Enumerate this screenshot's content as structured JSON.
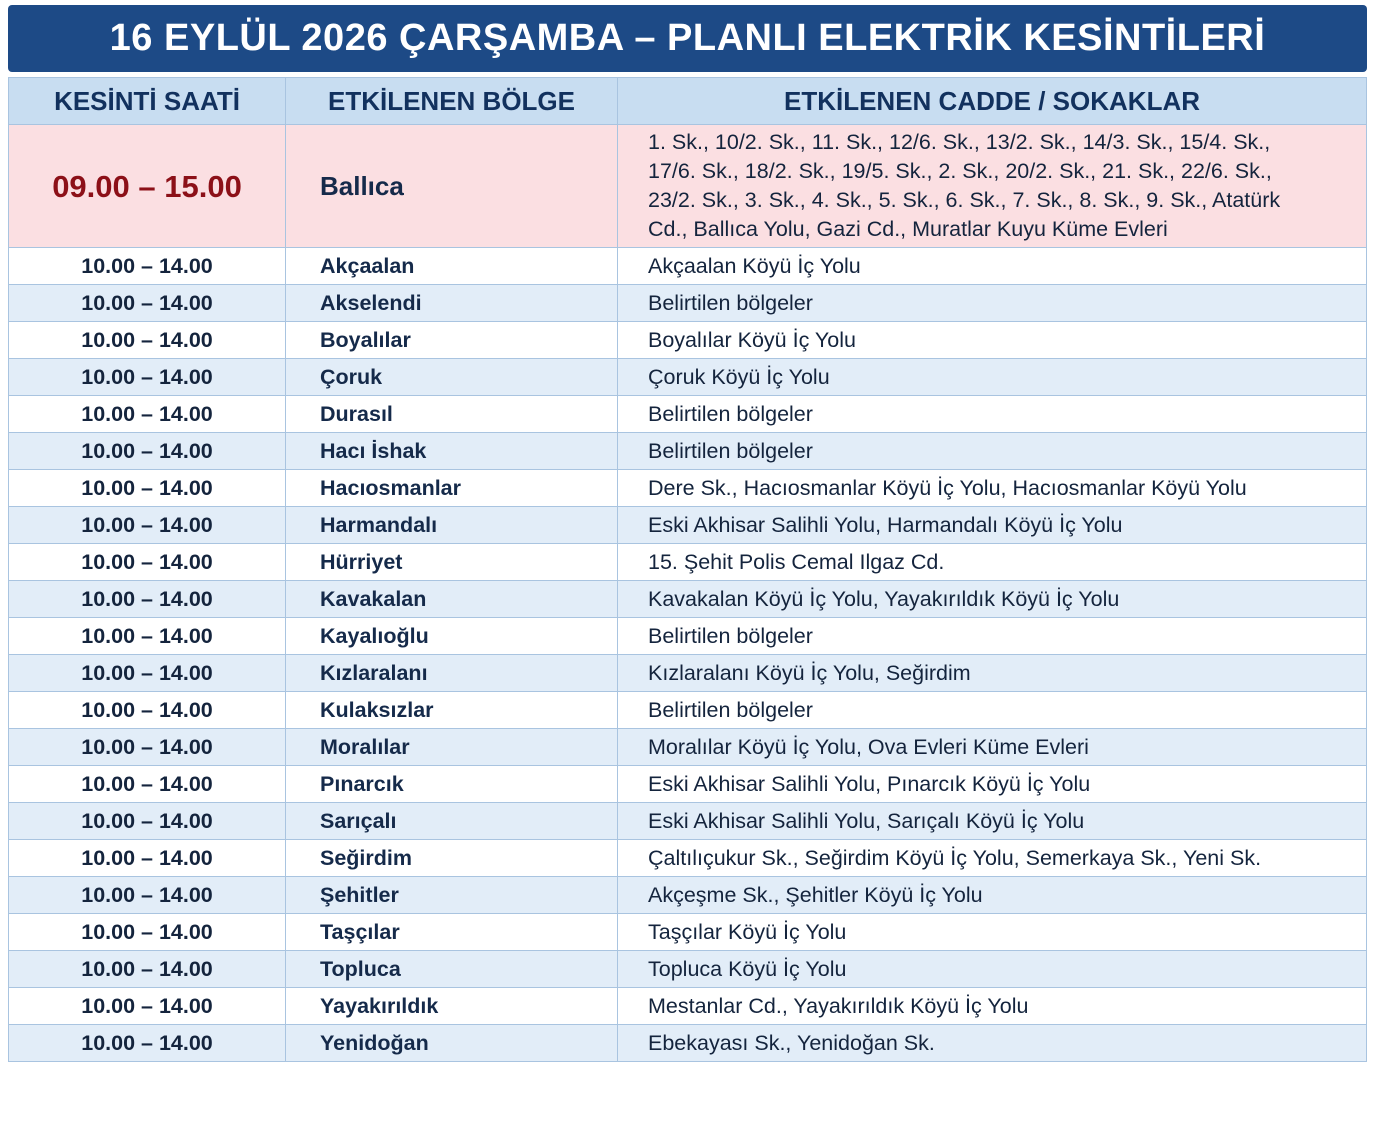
{
  "header": {
    "title": "16 EYLÜL 2026 ÇARŞAMBA – PLANLI ELEKTRİK KESİNTİLERİ"
  },
  "table": {
    "columns": [
      "KESİNTİ SAATİ",
      "ETKİLENEN BÖLGE",
      "ETKİLENEN CADDE / SOKAKLAR"
    ],
    "rows": [
      [
        "09.00 – 15.00",
        "Ballıca",
        "1. Sk., 10/2. Sk., 11. Sk., 12/6. Sk., 13/2. Sk., 14/3. Sk., 15/4. Sk., 17/6. Sk., 18/2. Sk., 19/5. Sk., 2. Sk., 20/2. Sk., 21. Sk., 22/6. Sk., 23/2. Sk., 3. Sk., 4. Sk., 5. Sk., 6. Sk., 7. Sk., 8. Sk., 9. Sk., Atatürk Cd., Ballıca Yolu, Gazi Cd., Muratlar Kuyu Küme Evleri"
      ],
      [
        "10.00 – 14.00",
        "Akçaalan",
        "Akçaalan Köyü İç Yolu"
      ],
      [
        "10.00 – 14.00",
        "Akselendi",
        "Belirtilen bölgeler"
      ],
      [
        "10.00 – 14.00",
        "Boyalılar",
        "Boyalılar Köyü İç Yolu"
      ],
      [
        "10.00 – 14.00",
        "Çoruk",
        "Çoruk Köyü İç Yolu"
      ],
      [
        "10.00 – 14.00",
        "Durasıl",
        "Belirtilen bölgeler"
      ],
      [
        "10.00 – 14.00",
        "Hacı İshak",
        "Belirtilen bölgeler"
      ],
      [
        "10.00 – 14.00",
        "Hacıosmanlar",
        "Dere Sk., Hacıosmanlar Köyü İç Yolu, Hacıosmanlar Köyü Yolu"
      ],
      [
        "10.00 – 14.00",
        "Harmandalı",
        "Eski Akhisar Salihli Yolu, Harmandalı Köyü İç Yolu"
      ],
      [
        "10.00 – 14.00",
        "Hürriyet",
        "15. Şehit Polis Cemal Ilgaz Cd."
      ],
      [
        "10.00 – 14.00",
        "Kavakalan",
        "Kavakalan Köyü İç Yolu, Yayakırıldık Köyü İç Yolu"
      ],
      [
        "10.00 – 14.00",
        "Kayalıoğlu",
        "Belirtilen bölgeler"
      ],
      [
        "10.00 – 14.00",
        "Kızlaralanı",
        "Kızlaralanı Köyü İç Yolu, Seğirdim"
      ],
      [
        "10.00 – 14.00",
        "Kulaksızlar",
        "Belirtilen bölgeler"
      ],
      [
        "10.00 – 14.00",
        "Moralılar",
        "Moralılar Köyü İç Yolu, Ova Evleri Küme Evleri"
      ],
      [
        "10.00 – 14.00",
        "Pınarcık",
        "Eski Akhisar Salihli Yolu, Pınarcık Köyü İç Yolu"
      ],
      [
        "10.00 – 14.00",
        "Sarıçalı",
        "Eski Akhisar Salihli Yolu, Sarıçalı Köyü İç Yolu"
      ],
      [
        "10.00 – 14.00",
        "Seğirdim",
        "Çaltılıçukur Sk., Seğirdim Köyü İç Yolu, Semerkaya Sk., Yeni Sk."
      ],
      [
        "10.00 – 14.00",
        "Şehitler",
        "Akçeşme Sk., Şehitler Köyü İç Yolu"
      ],
      [
        "10.00 – 14.00",
        "Taşçılar",
        "Taşçılar Köyü İç Yolu"
      ],
      [
        "10.00 – 14.00",
        "Topluca",
        "Topluca Köyü İç Yolu"
      ],
      [
        "10.00 – 14.00",
        "Yayakırıldık",
        "Mestanlar Cd., Yayakırıldık Köyü İç Yolu"
      ],
      [
        "10.00 – 14.00",
        "Yenidoğan",
        "Ebekayası Sk., Yenidoğan Sk."
      ]
    ]
  }
}
